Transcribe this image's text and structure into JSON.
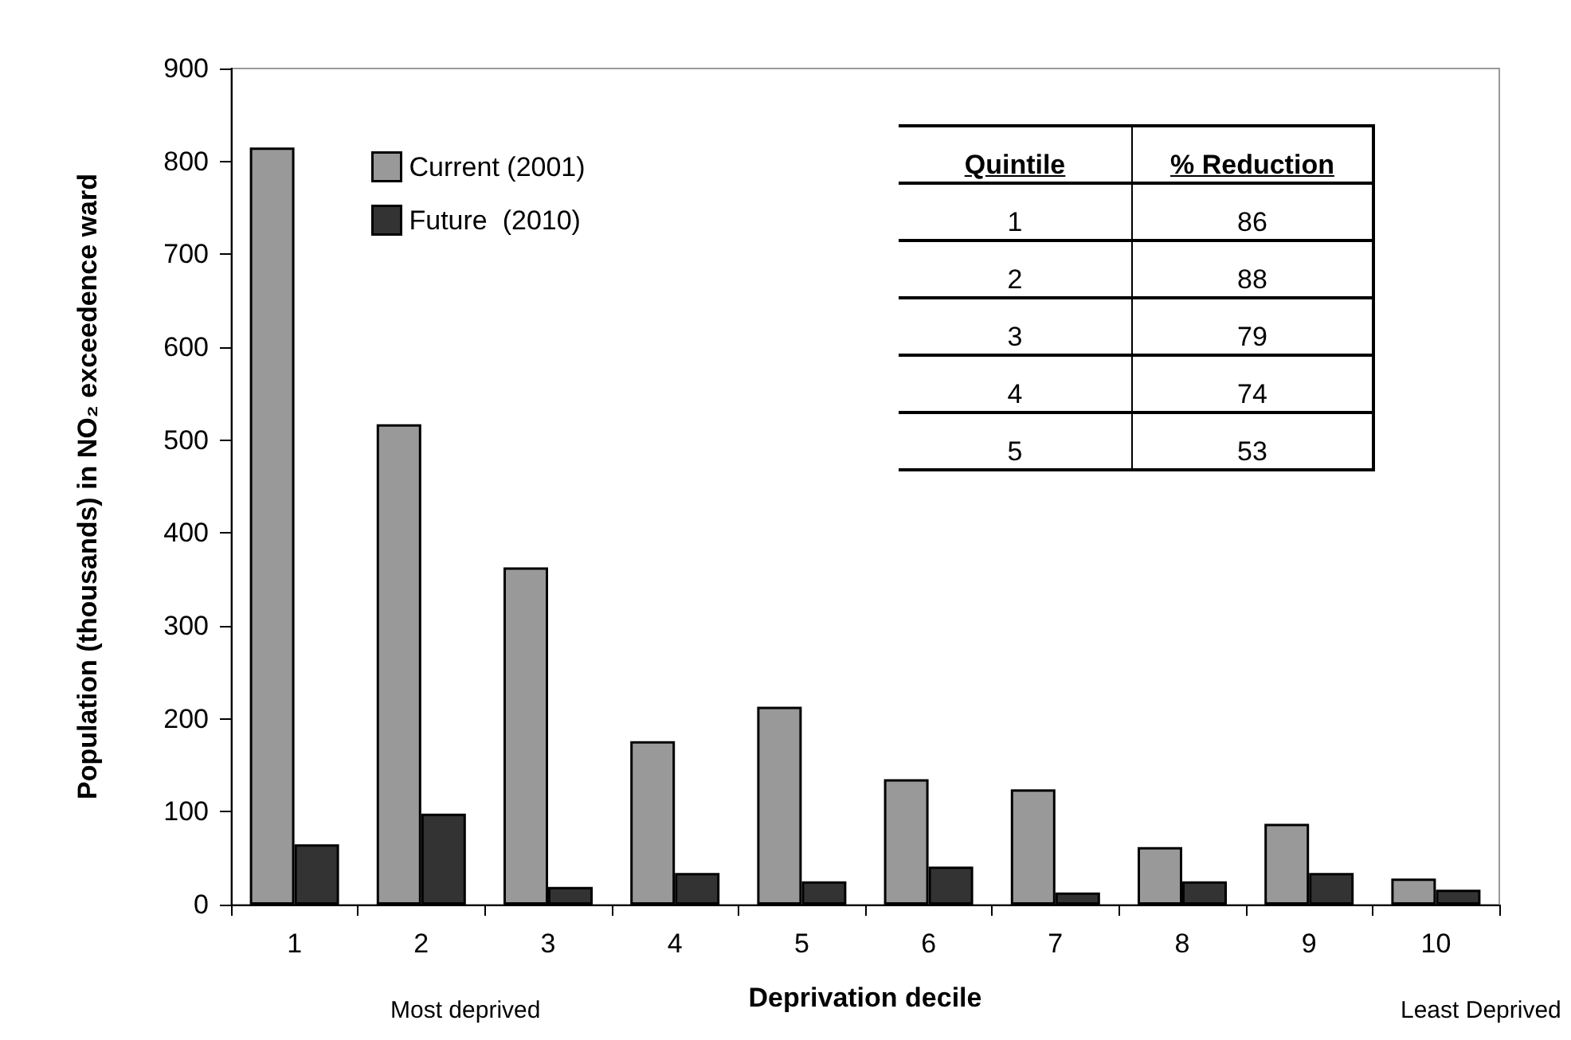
{
  "chart_data": {
    "type": "bar",
    "xlabel": "Deprivation decile",
    "ylabel": "Population (thousands) in NO₂ exceedence ward",
    "categories": [
      "1",
      "2",
      "3",
      "4",
      "5",
      "6",
      "7",
      "8",
      "9",
      "10"
    ],
    "series": [
      {
        "name": "Current (2001)",
        "color": "#999999",
        "values": [
          815,
          517,
          363,
          176,
          213,
          135,
          124,
          62,
          87,
          28
        ]
      },
      {
        "name": "Future  (2010)",
        "color": "#333333",
        "values": [
          65,
          98,
          19,
          34,
          25,
          41,
          13,
          25,
          34,
          16
        ]
      }
    ],
    "ylim": [
      0,
      900
    ],
    "yticks": [
      0,
      100,
      200,
      300,
      400,
      500,
      600,
      700,
      800,
      900
    ],
    "grid": false,
    "legend": "top left",
    "annotations": [
      "Most deprived",
      "Least Deprived",
      "Quintile",
      "% Reduction",
      "1",
      "86",
      "2",
      "88",
      "3",
      "79",
      "4",
      "74",
      "5",
      "53"
    ]
  }
}
